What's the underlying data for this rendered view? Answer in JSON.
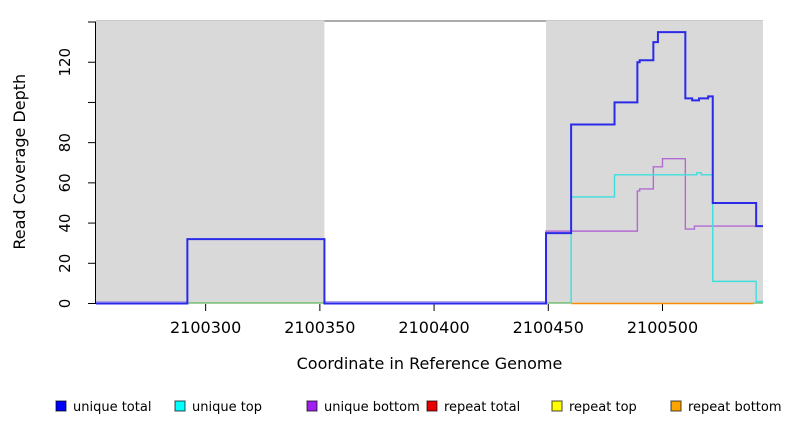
{
  "chart_data": {
    "type": "line",
    "step": true,
    "title": "",
    "xlabel": "Coordinate in Reference Genome",
    "ylabel": "Read Coverage Depth",
    "xlim": [
      2100252,
      2100544
    ],
    "ylim": [
      0,
      141
    ],
    "grid": false,
    "legend_position": "bottom",
    "region_color": "#d9d9d9",
    "region_edge_color": "#c9c9c9",
    "gap_top_line": {
      "from": 2100352,
      "to": 2100449,
      "color": "#8f8f8f"
    },
    "shaded_regions": [
      {
        "from": 2100252,
        "to": 2100352
      },
      {
        "from": 2100449,
        "to": 2100544
      }
    ],
    "x_ticks": [
      {
        "v": 2100300,
        "label": "2100300"
      },
      {
        "v": 2100350,
        "label": "2100350"
      },
      {
        "v": 2100400,
        "label": "2100400"
      },
      {
        "v": 2100450,
        "label": "2100450"
      },
      {
        "v": 2100500,
        "label": "2100500"
      }
    ],
    "y_ticks": [
      {
        "v": 0,
        "label": "0"
      },
      {
        "v": 20,
        "label": "20"
      },
      {
        "v": 40,
        "label": "40"
      },
      {
        "v": 60,
        "label": "60"
      },
      {
        "v": 80,
        "label": "80"
      },
      {
        "v": 100,
        "label": ""
      },
      {
        "v": 120,
        "label": "120"
      },
      {
        "v": 140,
        "label": ""
      }
    ],
    "series": [
      {
        "name": "repeat total",
        "color": "#e60000",
        "width": 1.4,
        "points": []
      },
      {
        "name": "repeat top",
        "color": "#f0f000",
        "width": 1.4,
        "points": []
      },
      {
        "name": "repeat bottom",
        "color": "#ff8c00",
        "width": 1.5,
        "points": [
          [
            2100460,
            0
          ],
          [
            2100540,
            0
          ]
        ]
      },
      {
        "name": "unique bottom",
        "color": "#b36bd4",
        "width": 1.4,
        "points": [
          [
            2100449,
            0
          ],
          [
            2100449,
            36
          ],
          [
            2100489,
            36
          ],
          [
            2100489,
            56
          ],
          [
            2100490,
            56
          ],
          [
            2100490,
            57
          ],
          [
            2100496,
            57
          ],
          [
            2100496,
            68
          ],
          [
            2100500,
            68
          ],
          [
            2100500,
            72
          ],
          [
            2100510,
            72
          ],
          [
            2100510,
            37
          ],
          [
            2100514,
            37
          ],
          [
            2100514,
            38.5
          ],
          [
            2100544,
            38.5
          ]
        ]
      },
      {
        "name": "unique top",
        "color": "#3fdede",
        "width": 1.4,
        "points": [
          [
            2100460,
            0
          ],
          [
            2100460,
            53
          ],
          [
            2100479,
            53
          ],
          [
            2100479,
            64
          ],
          [
            2100515,
            64
          ],
          [
            2100515,
            65
          ],
          [
            2100517,
            65
          ],
          [
            2100517,
            64
          ],
          [
            2100522,
            64
          ],
          [
            2100522,
            11
          ],
          [
            2100541,
            11
          ],
          [
            2100541,
            1
          ],
          [
            2100544,
            1
          ]
        ]
      },
      {
        "name": "unique total",
        "color": "#2a2ae8",
        "width": 2,
        "points": [
          [
            2100252,
            0
          ],
          [
            2100292,
            0
          ],
          [
            2100292,
            32
          ],
          [
            2100352,
            32
          ],
          [
            2100352,
            0
          ],
          [
            2100449,
            0
          ],
          [
            2100449,
            35
          ],
          [
            2100460,
            35
          ],
          [
            2100460,
            89
          ],
          [
            2100479,
            89
          ],
          [
            2100479,
            100
          ],
          [
            2100489,
            100
          ],
          [
            2100489,
            120
          ],
          [
            2100490,
            120
          ],
          [
            2100490,
            121
          ],
          [
            2100496,
            121
          ],
          [
            2100496,
            130
          ],
          [
            2100498,
            130
          ],
          [
            2100498,
            135
          ],
          [
            2100510,
            135
          ],
          [
            2100510,
            102
          ],
          [
            2100513,
            102
          ],
          [
            2100513,
            101
          ],
          [
            2100516,
            101
          ],
          [
            2100516,
            102
          ],
          [
            2100520,
            102
          ],
          [
            2100520,
            103
          ],
          [
            2100522,
            103
          ],
          [
            2100522,
            50
          ],
          [
            2100541,
            50
          ],
          [
            2100541,
            38.5
          ],
          [
            2100544,
            38.5
          ]
        ]
      }
    ],
    "baseline_overlaps": [
      {
        "color": "#a79ae6",
        "from": 2100252,
        "to": 2100292,
        "dy": -1.8,
        "w": 1.2
      },
      {
        "color": "#6abf69",
        "from": 2100292,
        "to": 2100352,
        "dy": -0.6,
        "w": 1.3
      },
      {
        "color": "#a79ae6",
        "from": 2100352,
        "to": 2100449,
        "dy": -1.8,
        "w": 1.2
      },
      {
        "color": "#6abf69",
        "from": 2100449,
        "to": 2100460,
        "dy": -0.6,
        "w": 1.3
      },
      {
        "color": "#6abf69",
        "from": 2100540,
        "to": 2100544,
        "dy": -0.6,
        "w": 1.3
      }
    ],
    "legend": [
      {
        "label": "unique total",
        "color": "#0000ff"
      },
      {
        "label": "unique top",
        "color": "#00ffff"
      },
      {
        "label": "unique bottom",
        "color": "#a020f0"
      },
      {
        "label": "repeat total",
        "color": "#e60000"
      },
      {
        "label": "repeat top",
        "color": "#ffff00"
      },
      {
        "label": "repeat bottom",
        "color": "#ffa500"
      }
    ]
  }
}
